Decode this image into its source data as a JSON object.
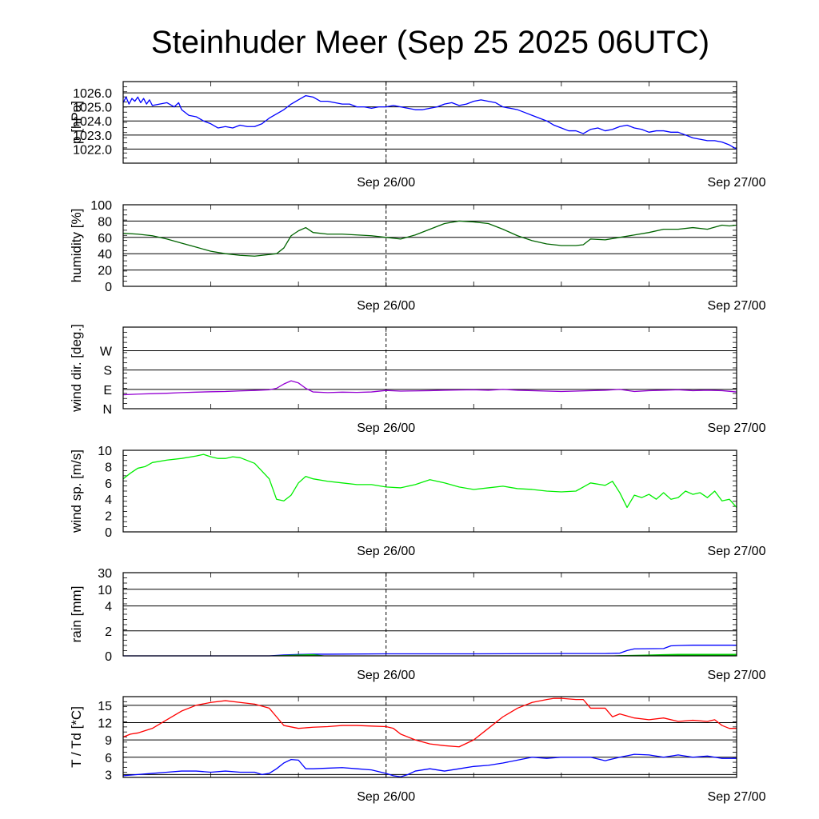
{
  "title": "Steinhuder Meer (Sep 25 2025 06UTC)",
  "colors": {
    "pressure": "#0000ff",
    "humidity": "#006400",
    "wind_dir": "#9400d3",
    "wind_speed": "#00ee00",
    "rain_total": "#0000ff",
    "rain_bars": "#00cc00",
    "temperature": "#ff0000",
    "dewpoint": "#0000ff"
  },
  "chart_data": [
    {
      "id": "pressure",
      "type": "line",
      "ylabel": "p [hPa]",
      "ylim": [
        1021.0,
        1026.8
      ],
      "x_range": [
        0,
        42
      ],
      "x_units": "hours since Sep 25 06UTC",
      "gridlines": [
        1022,
        1023,
        1024,
        1025,
        1026
      ],
      "ticks": [
        {
          "value": 1026,
          "label": "1026.0"
        },
        {
          "value": 1025,
          "label": "1025.0"
        },
        {
          "value": 1024,
          "label": "1024.0"
        },
        {
          "value": 1023,
          "label": "1023.0"
        },
        {
          "value": 1022,
          "label": "1022.0"
        }
      ],
      "date_labels": [
        {
          "x": 18,
          "label": "Sep 26/00"
        },
        {
          "x": 42,
          "label": "Sep 27/00"
        }
      ],
      "series": [
        {
          "name": "pressure",
          "color": "#0000ff",
          "x": [
            0,
            0.2,
            0.4,
            0.6,
            0.8,
            1.0,
            1.2,
            1.4,
            1.6,
            1.8,
            2.0,
            2.5,
            3.0,
            3.5,
            3.8,
            4.0,
            4.5,
            5.0,
            5.5,
            6.0,
            6.5,
            7.0,
            7.5,
            8.0,
            8.5,
            9.0,
            9.5,
            10.0,
            10.5,
            11.0,
            11.5,
            12.0,
            12.5,
            13.0,
            13.5,
            14.0,
            14.5,
            15.0,
            15.5,
            16.0,
            16.5,
            17.0,
            17.5,
            18.0,
            18.5,
            19.0,
            19.5,
            20.0,
            20.5,
            21.0,
            21.5,
            22.0,
            22.5,
            23.0,
            23.5,
            24.0,
            24.5,
            25.0,
            25.5,
            26.0,
            26.5,
            27.0,
            27.5,
            28.0,
            28.5,
            29.0,
            29.5,
            30.0,
            30.5,
            31.0,
            31.5,
            32.0,
            32.5,
            33.0,
            33.5,
            34.0,
            34.5,
            35.0,
            35.5,
            36.0,
            36.5,
            37.0,
            37.5,
            38.0,
            38.5,
            39.0,
            39.5,
            40.0,
            40.5,
            41.0,
            41.5,
            42.0
          ],
          "values": [
            1025.3,
            1025.7,
            1025.2,
            1025.6,
            1025.4,
            1025.7,
            1025.3,
            1025.6,
            1025.2,
            1025.5,
            1025.1,
            1025.2,
            1025.3,
            1025.0,
            1025.3,
            1024.8,
            1024.4,
            1024.3,
            1024.0,
            1023.8,
            1023.5,
            1023.6,
            1023.5,
            1023.7,
            1023.6,
            1023.6,
            1023.8,
            1024.2,
            1024.5,
            1024.8,
            1025.2,
            1025.5,
            1025.8,
            1025.7,
            1025.4,
            1025.4,
            1025.3,
            1025.2,
            1025.2,
            1025.0,
            1025.0,
            1024.9,
            1025.0,
            1025.0,
            1025.1,
            1025.0,
            1024.9,
            1024.8,
            1024.8,
            1024.9,
            1025.0,
            1025.2,
            1025.3,
            1025.1,
            1025.2,
            1025.4,
            1025.5,
            1025.4,
            1025.3,
            1025.0,
            1024.9,
            1024.8,
            1024.6,
            1024.4,
            1024.2,
            1024.0,
            1023.7,
            1023.5,
            1023.3,
            1023.3,
            1023.1,
            1023.4,
            1023.5,
            1023.3,
            1023.4,
            1023.6,
            1023.7,
            1023.5,
            1023.4,
            1023.2,
            1023.3,
            1023.3,
            1023.2,
            1023.2,
            1023.0,
            1022.8,
            1022.7,
            1022.6,
            1022.6,
            1022.5,
            1022.3,
            1022.0
          ]
        }
      ]
    },
    {
      "id": "humidity",
      "type": "line",
      "ylabel": "humidity [%]",
      "ylim": [
        0,
        100
      ],
      "x_range": [
        0,
        42
      ],
      "gridlines": [
        20,
        40,
        60,
        80
      ],
      "ticks": [
        {
          "value": 100,
          "label": "100"
        },
        {
          "value": 80,
          "label": "80"
        },
        {
          "value": 60,
          "label": "60"
        },
        {
          "value": 40,
          "label": "40"
        },
        {
          "value": 20,
          "label": "20"
        },
        {
          "value": 0,
          "label": "0"
        }
      ],
      "date_labels": [
        {
          "x": 18,
          "label": "Sep 26/00"
        },
        {
          "x": 42,
          "label": "Sep 27/00"
        }
      ],
      "series": [
        {
          "name": "humidity",
          "color": "#006400",
          "x": [
            0,
            1,
            2,
            3,
            4,
            5,
            6,
            7,
            8,
            9,
            10,
            10.5,
            11,
            11.5,
            12,
            12.5,
            13,
            14,
            15,
            16,
            17,
            18,
            19,
            20,
            21,
            22,
            23,
            24,
            25,
            26,
            27,
            28,
            29,
            30,
            31,
            31.5,
            32,
            33,
            34,
            35,
            36,
            37,
            38,
            39,
            40,
            41,
            41.5,
            42
          ],
          "values": [
            65,
            64,
            62,
            58,
            53,
            48,
            43,
            40,
            38,
            37,
            39,
            40,
            47,
            62,
            68,
            72,
            66,
            64,
            64,
            63,
            62,
            60,
            58,
            63,
            70,
            77,
            80,
            79,
            77,
            70,
            62,
            56,
            52,
            50,
            50,
            51,
            58,
            57,
            60,
            63,
            66,
            70,
            70,
            72,
            70,
            75,
            74,
            75
          ]
        }
      ]
    },
    {
      "id": "wind_dir",
      "type": "line",
      "ylabel": "wind dir. [deg.]",
      "ylim": [
        0,
        380
      ],
      "x_range": [
        0,
        42
      ],
      "gridlines": [
        90,
        180,
        270
      ],
      "ticks": [
        {
          "value": 270,
          "label": "W"
        },
        {
          "value": 180,
          "label": "S"
        },
        {
          "value": 90,
          "label": "E"
        },
        {
          "value": 0,
          "label": "N"
        }
      ],
      "date_labels": [
        {
          "x": 18,
          "label": "Sep 26/00"
        },
        {
          "x": 42,
          "label": "Sep 27/00"
        }
      ],
      "series": [
        {
          "name": "wind direction",
          "color": "#9400d3",
          "x": [
            0,
            1,
            2,
            3,
            4,
            5,
            6,
            7,
            8,
            9,
            10,
            10.5,
            11,
            11.5,
            12,
            12.5,
            13,
            14,
            15,
            16,
            17,
            18,
            19,
            20,
            21,
            22,
            23,
            24,
            25,
            26,
            27,
            28,
            29,
            30,
            31,
            32,
            33,
            34,
            35,
            36,
            37,
            38,
            39,
            40,
            41,
            42
          ],
          "values": [
            65,
            68,
            70,
            72,
            75,
            77,
            79,
            80,
            83,
            85,
            88,
            95,
            115,
            130,
            120,
            95,
            78,
            75,
            77,
            76,
            78,
            85,
            82,
            83,
            84,
            86,
            87,
            88,
            86,
            90,
            86,
            84,
            82,
            80,
            82,
            84,
            86,
            90,
            80,
            84,
            86,
            88,
            84,
            86,
            84,
            78
          ]
        }
      ]
    },
    {
      "id": "wind_speed",
      "type": "line",
      "ylabel": "wind sp. [m/s]",
      "ylim": [
        0,
        10
      ],
      "x_range": [
        0,
        42
      ],
      "gridlines": [],
      "ticks": [
        {
          "value": 10,
          "label": "10"
        },
        {
          "value": 8,
          "label": "8"
        },
        {
          "value": 6,
          "label": "6"
        },
        {
          "value": 4,
          "label": "4"
        },
        {
          "value": 2,
          "label": "2"
        },
        {
          "value": 0,
          "label": "0"
        }
      ],
      "date_labels": [
        {
          "x": 18,
          "label": "Sep 26/00"
        },
        {
          "x": 42,
          "label": "Sep 27/00"
        }
      ],
      "series": [
        {
          "name": "wind speed",
          "color": "#00ee00",
          "x": [
            0,
            0.5,
            1,
            1.5,
            2,
            3,
            4,
            5,
            5.5,
            6,
            6.5,
            7,
            7.5,
            8,
            9,
            10,
            10.5,
            11,
            11.5,
            12,
            12.5,
            13,
            14,
            15,
            16,
            17,
            18,
            19,
            20,
            21,
            22,
            23,
            24,
            25,
            26,
            27,
            28,
            29,
            30,
            31,
            31.5,
            32,
            33,
            33.5,
            34,
            34.5,
            35,
            35.5,
            36,
            36.5,
            37,
            37.5,
            38,
            38.5,
            39,
            39.5,
            40,
            40.5,
            41,
            41.5,
            42
          ],
          "values": [
            6.5,
            7.2,
            7.8,
            8.0,
            8.5,
            8.8,
            9.0,
            9.3,
            9.5,
            9.2,
            9.0,
            9.0,
            9.2,
            9.1,
            8.4,
            6.5,
            4.0,
            3.8,
            4.5,
            6.0,
            6.8,
            6.5,
            6.2,
            6.0,
            5.8,
            5.8,
            5.5,
            5.4,
            5.8,
            6.4,
            6.0,
            5.5,
            5.2,
            5.4,
            5.6,
            5.3,
            5.2,
            5.0,
            4.9,
            5.0,
            5.5,
            6.0,
            5.7,
            6.2,
            4.8,
            3.0,
            4.5,
            4.2,
            4.6,
            4.0,
            4.8,
            4.0,
            4.2,
            5.0,
            4.6,
            4.8,
            4.2,
            5.0,
            3.8,
            4.0,
            3.0
          ]
        }
      ]
    },
    {
      "id": "rain",
      "type": "line",
      "ylabel": "rain [mm]",
      "ylim": [
        0,
        5
      ],
      "x_range": [
        0,
        42
      ],
      "gridlines": [
        1.5,
        3,
        4,
        5
      ],
      "ticks": [
        {
          "value": 5,
          "label": "30"
        },
        {
          "value": 4,
          "label": "10"
        },
        {
          "value": 3,
          "label": "4"
        },
        {
          "value": 1.5,
          "label": "2"
        },
        {
          "value": 0,
          "label": "0"
        }
      ],
      "scale_note": "non-linear axis; tick labels are mm, values are axis positions",
      "date_labels": [
        {
          "x": 18,
          "label": "Sep 26/00"
        },
        {
          "x": 42,
          "label": "Sep 27/00"
        }
      ],
      "series": [
        {
          "name": "accumulated rain",
          "color": "#0000ff",
          "x": [
            0,
            10,
            11,
            12,
            13,
            14,
            18,
            24,
            30,
            33,
            34,
            34.5,
            35,
            37,
            37.5,
            38,
            39,
            40,
            42
          ],
          "values": [
            0,
            0,
            0.05,
            0.08,
            0.1,
            0.1,
            0.12,
            0.12,
            0.14,
            0.14,
            0.16,
            0.32,
            0.42,
            0.44,
            0.6,
            0.62,
            0.64,
            0.64,
            0.64
          ]
        },
        {
          "name": "rain bars",
          "color": "#00cc00",
          "type": "fill",
          "x": [
            10,
            11,
            12,
            13,
            14,
            15,
            33,
            34,
            35,
            36,
            37,
            38,
            39,
            40,
            41,
            42
          ],
          "values": [
            0.02,
            0.05,
            0.08,
            0.1,
            0,
            0,
            0,
            0.04,
            0.06,
            0.08,
            0.1,
            0.12,
            0.12,
            0.12,
            0.12,
            0.12
          ]
        }
      ]
    },
    {
      "id": "temperature",
      "type": "line",
      "ylabel": "T / Td [*C]",
      "ylim": [
        2.5,
        16.5
      ],
      "x_range": [
        0,
        42
      ],
      "gridlines": [
        3,
        6,
        9,
        12,
        15
      ],
      "ticks": [
        {
          "value": 15,
          "label": "15"
        },
        {
          "value": 12,
          "label": "12"
        },
        {
          "value": 9,
          "label": "9"
        },
        {
          "value": 6,
          "label": "6"
        },
        {
          "value": 3,
          "label": "3"
        }
      ],
      "date_labels": [
        {
          "x": 18,
          "label": "Sep 26/00"
        },
        {
          "x": 42,
          "label": "Sep 27/00"
        }
      ],
      "series": [
        {
          "name": "T",
          "color": "#ff0000",
          "x": [
            0,
            0.5,
            1,
            2,
            3,
            4,
            5,
            6,
            7,
            8,
            9,
            10,
            10.5,
            11,
            12,
            13,
            14,
            15,
            16,
            17,
            18,
            18.5,
            19,
            20,
            21,
            22,
            23,
            24,
            25,
            26,
            27,
            28,
            29,
            29.5,
            30,
            31,
            31.5,
            32,
            33,
            33.5,
            34,
            35,
            36,
            37,
            38,
            39,
            40,
            40.5,
            41,
            41.5,
            42
          ],
          "values": [
            9.5,
            10,
            10.2,
            11,
            12.5,
            14,
            15,
            15.5,
            15.8,
            15.5,
            15.2,
            14.5,
            13,
            11.5,
            11,
            11.2,
            11.3,
            11.5,
            11.5,
            11.4,
            11.3,
            11.0,
            10.0,
            9.0,
            8.3,
            8.0,
            7.8,
            9,
            11,
            13,
            14.5,
            15.5,
            16,
            16.2,
            16.2,
            16.0,
            16.0,
            14.5,
            14.5,
            13,
            13.5,
            12.8,
            12.5,
            12.8,
            12.2,
            12.4,
            12.2,
            12.5,
            11.5,
            11,
            11
          ]
        },
        {
          "name": "Td",
          "color": "#0000ff",
          "x": [
            0,
            1,
            2,
            3,
            4,
            5,
            6,
            7,
            8,
            9,
            9.5,
            10,
            10.5,
            11,
            11.5,
            12,
            12.5,
            13,
            14,
            15,
            16,
            17,
            18,
            18.5,
            19,
            19.5,
            20,
            21,
            22,
            23,
            24,
            25,
            26,
            27,
            28,
            29,
            30,
            31,
            32,
            33,
            34,
            35,
            36,
            37,
            38,
            39,
            40,
            41,
            42
          ],
          "values": [
            2.8,
            3.0,
            3.2,
            3.4,
            3.6,
            3.6,
            3.4,
            3.6,
            3.4,
            3.4,
            3.0,
            3.2,
            4.0,
            5.0,
            5.6,
            5.5,
            4.0,
            4.0,
            4.1,
            4.2,
            4.0,
            3.8,
            3.2,
            2.8,
            2.6,
            3.0,
            3.6,
            4.0,
            3.6,
            4.0,
            4.4,
            4.6,
            5.0,
            5.5,
            6.0,
            5.8,
            6.0,
            6.0,
            6.0,
            5.4,
            6.0,
            6.5,
            6.4,
            6.0,
            6.4,
            6.0,
            6.2,
            5.8,
            5.8
          ]
        }
      ]
    }
  ]
}
